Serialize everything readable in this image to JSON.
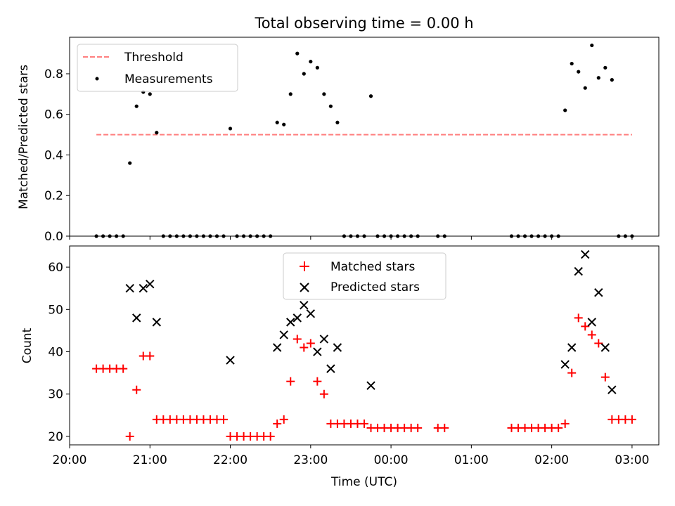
{
  "figure_title": "Total observing time = 0.00 h",
  "chart_data": [
    {
      "type": "scatter",
      "panel": "top",
      "ylabel": "Matched/Predicted stars",
      "ylim": [
        0,
        0.98
      ],
      "yticks": [
        0.0,
        0.2,
        0.4,
        0.6,
        0.8
      ],
      "ytick_labels": [
        "0.0",
        "0.2",
        "0.4",
        "0.6",
        "0.8"
      ],
      "xlim": [
        "20:00",
        "03:20"
      ],
      "legend_placement": "upper-left",
      "series": [
        {
          "name": "Threshold",
          "style": "dashed-line",
          "color": "#ff7f7f",
          "x": [
            "20:20",
            "03:00"
          ],
          "y": [
            0.5,
            0.5
          ]
        },
        {
          "name": "Measurements",
          "style": "dot",
          "color": "#000000",
          "x": [
            "20:20",
            "20:25",
            "20:30",
            "20:35",
            "20:40",
            "20:45",
            "20:50",
            "20:55",
            "21:00",
            "21:05",
            "21:10",
            "21:15",
            "21:20",
            "21:25",
            "21:30",
            "21:35",
            "21:40",
            "21:45",
            "21:50",
            "21:55",
            "22:00",
            "22:05",
            "22:10",
            "22:15",
            "22:20",
            "22:25",
            "22:30",
            "22:35",
            "22:40",
            "22:45",
            "22:50",
            "22:55",
            "23:00",
            "23:05",
            "23:10",
            "23:15",
            "23:20",
            "23:25",
            "23:30",
            "23:35",
            "23:40",
            "23:45",
            "23:50",
            "23:55",
            "00:00",
            "00:05",
            "00:10",
            "00:15",
            "00:20",
            "00:35",
            "00:40",
            "01:30",
            "01:35",
            "01:40",
            "01:45",
            "01:50",
            "01:55",
            "02:00",
            "02:05",
            "02:10",
            "02:15",
            "02:20",
            "02:25",
            "02:30",
            "02:35",
            "02:40",
            "02:45",
            "02:50",
            "02:55",
            "03:00"
          ],
          "y": [
            0.0,
            0.0,
            0.0,
            0.0,
            0.0,
            0.36,
            0.64,
            0.71,
            0.7,
            0.51,
            0.0,
            0.0,
            0.0,
            0.0,
            0.0,
            0.0,
            0.0,
            0.0,
            0.0,
            0.0,
            0.53,
            0.0,
            0.0,
            0.0,
            0.0,
            0.0,
            0.0,
            0.56,
            0.55,
            0.7,
            0.9,
            0.8,
            0.86,
            0.83,
            0.7,
            0.64,
            0.56,
            0.0,
            0.0,
            0.0,
            0.0,
            0.69,
            0.0,
            0.0,
            0.0,
            0.0,
            0.0,
            0.0,
            0.0,
            0.0,
            0.0,
            0.0,
            0.0,
            0.0,
            0.0,
            0.0,
            0.0,
            0.0,
            0.0,
            0.62,
            0.85,
            0.81,
            0.73,
            0.94,
            0.78,
            0.83,
            0.77,
            0.0,
            0.0,
            0.0
          ]
        }
      ]
    },
    {
      "type": "scatter",
      "panel": "bottom",
      "xlabel": "Time (UTC)",
      "ylabel": "Count",
      "ylim": [
        18,
        65
      ],
      "yticks": [
        20,
        30,
        40,
        50,
        60
      ],
      "ytick_labels": [
        "20",
        "30",
        "40",
        "50",
        "60"
      ],
      "xlim": [
        "20:00",
        "03:20"
      ],
      "xticks": [
        "20:00",
        "21:00",
        "22:00",
        "23:00",
        "00:00",
        "01:00",
        "02:00",
        "03:00"
      ],
      "legend_placement": "upper-center",
      "series": [
        {
          "name": "Matched stars",
          "marker": "plus",
          "color": "#ff0000",
          "x": [
            "20:20",
            "20:25",
            "20:30",
            "20:35",
            "20:40",
            "20:45",
            "20:50",
            "20:55",
            "21:00",
            "21:05",
            "21:10",
            "21:15",
            "21:20",
            "21:25",
            "21:30",
            "21:35",
            "21:40",
            "21:45",
            "21:50",
            "21:55",
            "22:00",
            "22:05",
            "22:10",
            "22:15",
            "22:20",
            "22:25",
            "22:30",
            "22:35",
            "22:40",
            "22:45",
            "22:50",
            "22:55",
            "23:00",
            "23:05",
            "23:10",
            "23:15",
            "23:20",
            "23:25",
            "23:30",
            "23:35",
            "23:40",
            "23:45",
            "23:50",
            "23:55",
            "00:00",
            "00:05",
            "00:10",
            "00:15",
            "00:20",
            "00:35",
            "00:40",
            "01:30",
            "01:35",
            "01:40",
            "01:45",
            "01:50",
            "01:55",
            "02:00",
            "02:05",
            "02:10",
            "02:15",
            "02:20",
            "02:25",
            "02:30",
            "02:35",
            "02:40",
            "02:45",
            "02:50",
            "02:55",
            "03:00"
          ],
          "y": [
            36,
            36,
            36,
            36,
            36,
            20,
            31,
            39,
            39,
            24,
            24,
            24,
            24,
            24,
            24,
            24,
            24,
            24,
            24,
            24,
            20,
            20,
            20,
            20,
            20,
            20,
            20,
            23,
            24,
            33,
            43,
            41,
            42,
            33,
            30,
            23,
            23,
            23,
            23,
            23,
            23,
            22,
            22,
            22,
            22,
            22,
            22,
            22,
            22,
            22,
            22,
            22,
            22,
            22,
            22,
            22,
            22,
            22,
            22,
            23,
            35,
            48,
            46,
            44,
            42,
            34,
            24,
            24,
            24,
            24
          ]
        },
        {
          "name": "Predicted stars",
          "marker": "x",
          "color": "#000000",
          "x": [
            "20:45",
            "20:50",
            "20:55",
            "21:00",
            "21:05",
            "22:00",
            "22:35",
            "22:40",
            "22:45",
            "22:50",
            "22:55",
            "23:00",
            "23:05",
            "23:10",
            "23:15",
            "23:20",
            "23:45",
            "02:10",
            "02:15",
            "02:20",
            "02:25",
            "02:30",
            "02:35",
            "02:40",
            "02:45"
          ],
          "y": [
            55,
            48,
            55,
            56,
            47,
            38,
            41,
            44,
            47,
            48,
            51,
            49,
            40,
            43,
            36,
            41,
            32,
            37,
            41,
            59,
            63,
            47,
            54,
            41,
            31
          ]
        }
      ]
    }
  ]
}
